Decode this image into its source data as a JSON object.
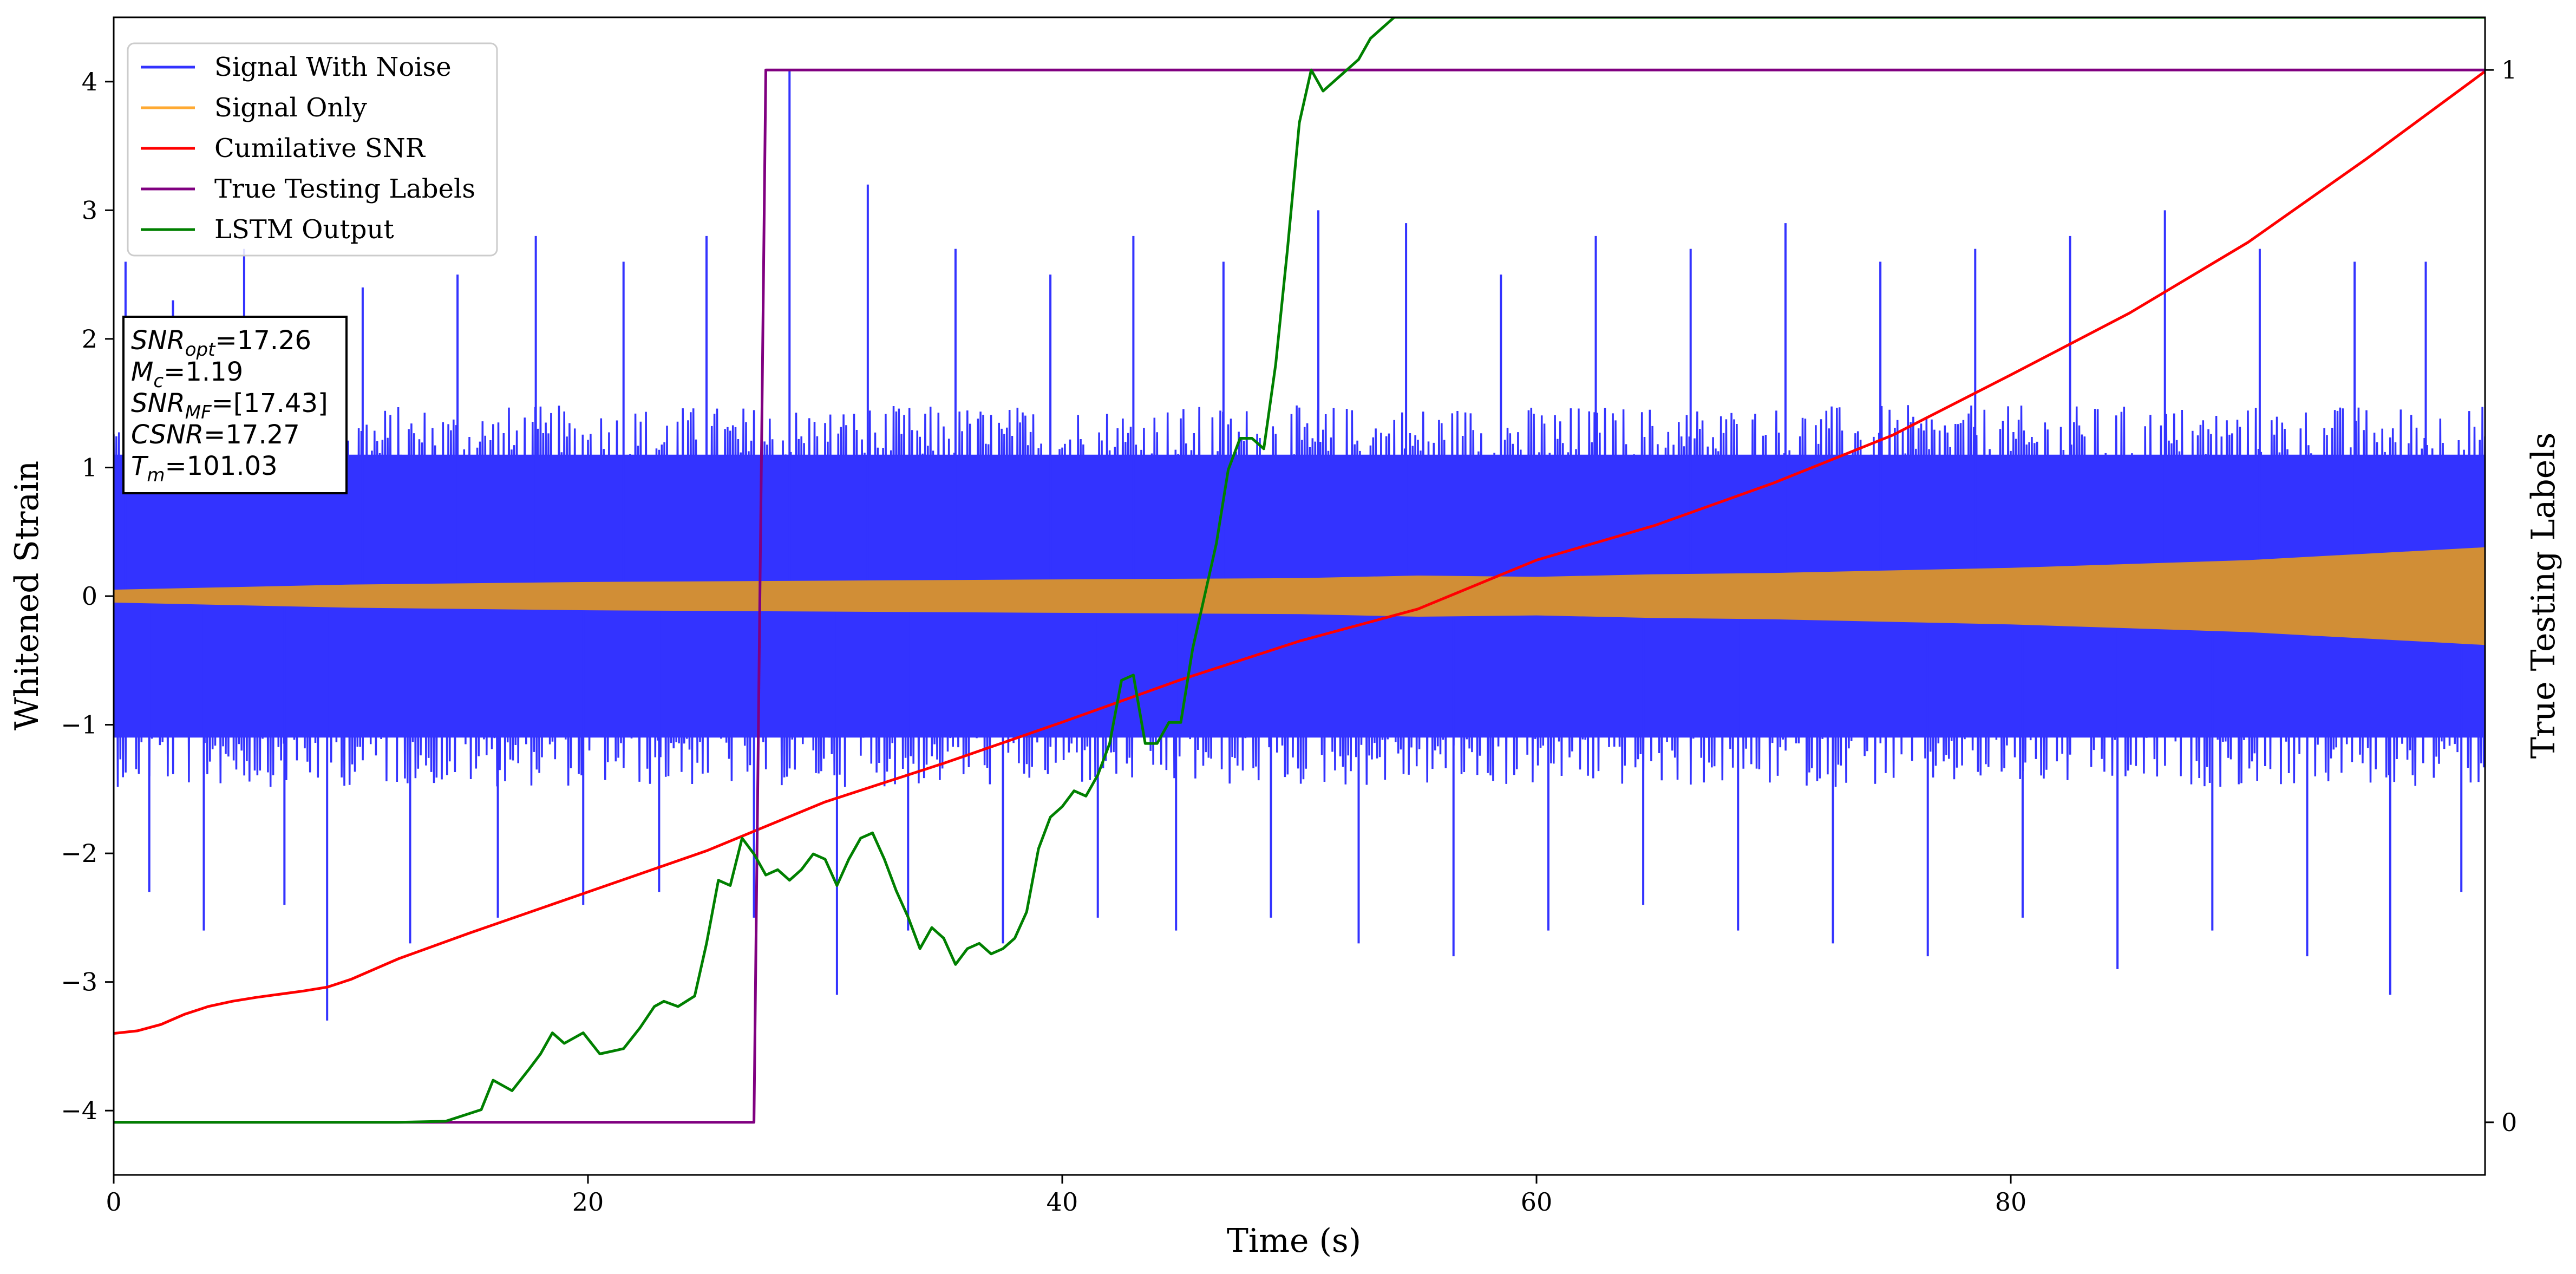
{
  "chart_data": {
    "type": "line",
    "xlabel": "Time (s)",
    "ylabel": "Whitened Strain",
    "ylabel_right": "True Testing Labels",
    "xlim": [
      0,
      100
    ],
    "ylim": [
      -4.5,
      4.5
    ],
    "ylim_right": [
      -0.05,
      1.05
    ],
    "x_ticks": [
      0,
      20,
      40,
      60,
      80
    ],
    "x_tick_labels": [
      "0",
      "20",
      "40",
      "60",
      "80"
    ],
    "y_ticks": [
      -4,
      -3,
      -2,
      -1,
      0,
      1,
      2,
      3,
      4
    ],
    "y_tick_labels": [
      "−4",
      "−3",
      "−2",
      "−1",
      "0",
      "1",
      "2",
      "3",
      "4"
    ],
    "y_right_ticks": [
      0,
      1
    ],
    "y_right_tick_labels": [
      "0",
      "1"
    ],
    "legend_position": "top-left",
    "grid": false,
    "series": [
      {
        "name": "Signal With Noise",
        "axis": "left",
        "color": "#3333ff",
        "style": "noise-band",
        "envelope": {
          "x": [
            0,
            10,
            20,
            30,
            40,
            50,
            60,
            70,
            80,
            90,
            100
          ],
          "upper": [
            1.1,
            1.1,
            1.1,
            1.1,
            1.1,
            1.1,
            1.1,
            1.1,
            1.1,
            1.1,
            1.1
          ],
          "lower": [
            -1.1,
            -1.1,
            -1.1,
            -1.1,
            -1.1,
            -1.1,
            -1.1,
            -1.1,
            -1.1,
            -1.1,
            -1.1
          ]
        },
        "spikes": {
          "x": [
            0.5,
            1.5,
            2.5,
            3.8,
            5.5,
            7.2,
            9.0,
            10.5,
            12.5,
            14.5,
            16.2,
            17.8,
            19.8,
            21.5,
            23.0,
            25.0,
            27.0,
            28.5,
            30.5,
            31.8,
            33.5,
            35.5,
            37.5,
            39.5,
            41.5,
            43.0,
            44.8,
            46.8,
            48.8,
            50.8,
            52.5,
            54.5,
            56.5,
            58.5,
            60.5,
            62.5,
            64.5,
            66.5,
            68.5,
            70.5,
            72.5,
            74.5,
            76.5,
            78.5,
            80.5,
            82.5,
            84.5,
            86.5,
            88.5,
            90.5,
            92.5,
            94.5,
            96.0,
            97.5,
            99.0
          ],
          "y": [
            2.6,
            -2.3,
            2.3,
            -2.6,
            2.7,
            -2.4,
            -3.3,
            2.4,
            -2.7,
            2.5,
            -2.5,
            2.8,
            -2.4,
            2.6,
            -2.3,
            2.8,
            -2.5,
            4.1,
            -3.1,
            3.2,
            -2.6,
            2.7,
            -2.7,
            2.5,
            -2.5,
            2.8,
            -2.6,
            2.6,
            -2.5,
            3.0,
            -2.7,
            2.9,
            -2.8,
            2.5,
            -2.6,
            2.8,
            -2.4,
            2.7,
            -2.6,
            2.9,
            -2.7,
            2.6,
            -2.8,
            2.7,
            -2.5,
            2.8,
            -2.9,
            3.0,
            -2.6,
            2.7,
            -2.8,
            2.6,
            -3.1,
            2.6,
            -2.3
          ]
        }
      },
      {
        "name": "Signal Only",
        "axis": "left",
        "color": "#d18e36",
        "legend_color": "#ffaa33",
        "style": "envelope-band",
        "x": [
          0,
          5,
          10,
          15,
          20,
          30,
          40,
          50,
          55,
          60,
          65,
          70,
          80,
          90,
          100
        ],
        "amplitude": [
          0.05,
          0.07,
          0.09,
          0.1,
          0.11,
          0.12,
          0.13,
          0.14,
          0.16,
          0.15,
          0.17,
          0.18,
          0.22,
          0.28,
          0.38
        ]
      },
      {
        "name": "Cumilative SNR",
        "axis": "left",
        "color": "#ff0000",
        "x": [
          0,
          1,
          2,
          3,
          4,
          5,
          6,
          8,
          9,
          10,
          12,
          15,
          20,
          25,
          30,
          35,
          40,
          45,
          50,
          55,
          60,
          65,
          70,
          75,
          80,
          85,
          90,
          95,
          100
        ],
        "y": [
          -3.4,
          -3.38,
          -3.33,
          -3.25,
          -3.19,
          -3.15,
          -3.12,
          -3.07,
          -3.04,
          -2.98,
          -2.82,
          -2.62,
          -2.3,
          -1.98,
          -1.6,
          -1.3,
          -0.98,
          -0.65,
          -0.35,
          -0.1,
          0.28,
          0.55,
          0.88,
          1.25,
          1.72,
          2.2,
          2.75,
          3.4,
          4.08
        ]
      },
      {
        "name": "True Testing Labels",
        "axis": "right",
        "color": "#800080",
        "x": [
          0,
          27.0,
          27.5,
          100
        ],
        "y": [
          0,
          0,
          1,
          1
        ]
      },
      {
        "name": "LSTM Output",
        "axis": "right",
        "color": "#008000",
        "x": [
          0,
          12,
          14,
          15.5,
          16,
          16.8,
          17.5,
          18,
          18.5,
          19,
          19.8,
          20.5,
          21.5,
          22.2,
          22.8,
          23.2,
          23.8,
          24.5,
          25,
          25.5,
          26,
          26.5,
          27,
          27.5,
          28,
          28.5,
          29,
          29.5,
          30,
          30.5,
          31,
          31.5,
          32,
          32.5,
          33,
          33.5,
          34,
          34.5,
          35,
          35.5,
          36,
          36.5,
          37,
          37.5,
          38,
          38.5,
          39,
          39.5,
          40,
          40.5,
          41,
          41.5,
          42,
          42.5,
          43,
          43.5,
          44,
          44.5,
          45,
          45.5,
          46,
          46.5,
          47,
          47.5,
          48,
          48.5,
          49,
          49.5,
          50,
          50.5,
          51,
          51.5,
          52,
          52.5,
          53,
          53.5,
          54,
          56,
          60,
          64,
          100
        ],
        "y": [
          0,
          0,
          0.001,
          0.012,
          0.04,
          0.03,
          0.05,
          0.065,
          0.085,
          0.075,
          0.085,
          0.065,
          0.07,
          0.09,
          0.11,
          0.115,
          0.11,
          0.12,
          0.17,
          0.23,
          0.225,
          0.27,
          0.255,
          0.235,
          0.24,
          0.23,
          0.24,
          0.255,
          0.25,
          0.225,
          0.25,
          0.27,
          0.275,
          0.25,
          0.22,
          0.195,
          0.165,
          0.185,
          0.175,
          0.15,
          0.165,
          0.17,
          0.16,
          0.165,
          0.175,
          0.2,
          0.26,
          0.29,
          0.3,
          0.315,
          0.31,
          0.33,
          0.36,
          0.42,
          0.425,
          0.36,
          0.36,
          0.38,
          0.38,
          0.45,
          0.5,
          0.55,
          0.62,
          0.65,
          0.65,
          0.64,
          0.72,
          0.83,
          0.95,
          1.0,
          0.98,
          0.99,
          1.0,
          1.01,
          1.03,
          1.04,
          1.05,
          1.05,
          1.05,
          1.05,
          1.05
        ]
      }
    ],
    "annotation_box": {
      "position": "top-left",
      "lines": [
        {
          "label": "SNR",
          "sub": "opt",
          "value": "=17.26"
        },
        {
          "label": "M",
          "sub": "c",
          "value": "=1.19"
        },
        {
          "label": "SNR",
          "sub": "MF",
          "value": "=[17.43]"
        },
        {
          "label": "CSNR",
          "sub": "",
          "value": "=17.27"
        },
        {
          "label": "T",
          "sub": "m",
          "value": "=101.03"
        }
      ]
    }
  }
}
